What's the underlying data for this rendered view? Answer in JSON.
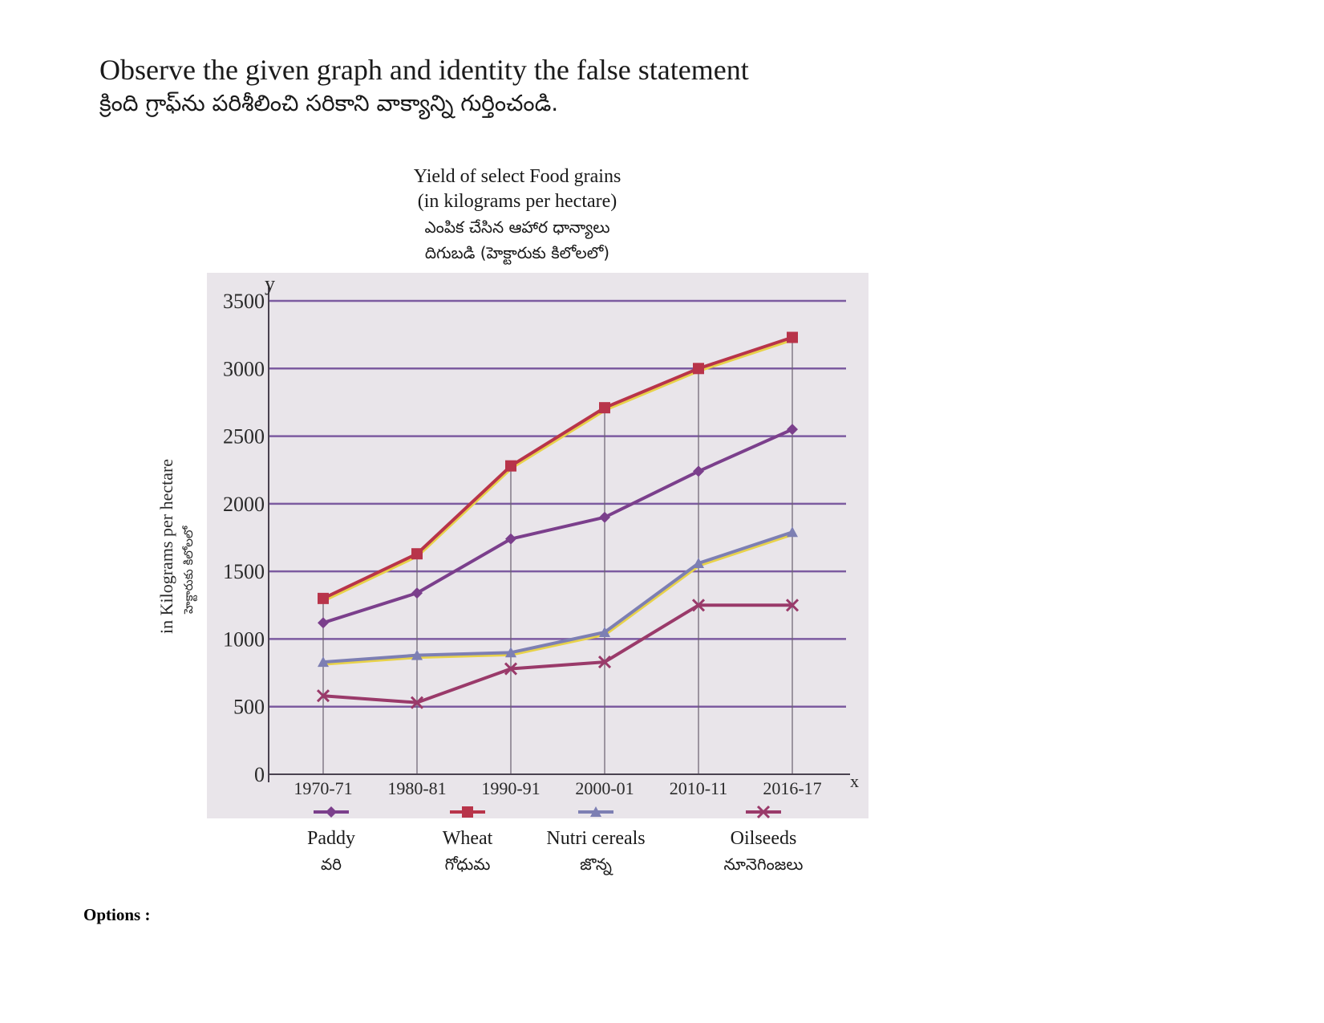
{
  "question": {
    "text_en": "Observe the given graph and identity the false statement",
    "text_te": "క్రింది గ్రాఫ్‌ను పరిశీలించి సరికాని వాక్యాన్ని గుర్తించండి."
  },
  "options_label": "Options :",
  "colors": {
    "paddy": "#7b3f8c",
    "wheat": "#b8344a",
    "nutri": "#7d7fb3",
    "oilseeds": "#9a3a6a",
    "grid": "#7c5ba0",
    "plot_bg": "#e9e5ea",
    "axis": "#4a4250"
  },
  "chart_data": {
    "type": "line",
    "title": "Yield of select Food grains",
    "subtitle": "(in kilograms per hectare)",
    "title_te": "ఎంపిక చేసిన ఆహార ధాన్యాలు",
    "subtitle_te": "దిగుబడి (హెక్టారుకు కిలోలలో)",
    "xlabel": "x",
    "ylabel": "y",
    "ylabel_en": "in Kilograms per hectare",
    "ylabel_te": "హెక్టారుకు కిలోలలో",
    "x": [
      "1970-71",
      "1980-81",
      "1990-91",
      "2000-01",
      "2010-11",
      "2016-17"
    ],
    "yticks": [
      0,
      500,
      1000,
      1500,
      2000,
      2500,
      3000,
      3500
    ],
    "ylim": [
      0,
      3500
    ],
    "grid": true,
    "series": [
      {
        "name": "Paddy",
        "name_te": "వరి",
        "key": "paddy",
        "marker": "diamond",
        "values": [
          1120,
          1340,
          1740,
          1900,
          2240,
          2550
        ]
      },
      {
        "name": "Wheat",
        "name_te": "గోధుమ",
        "key": "wheat",
        "marker": "square",
        "values": [
          1300,
          1630,
          2280,
          2710,
          3000,
          3230
        ]
      },
      {
        "name": "Nutri cereals",
        "name_te": "జొన్న",
        "key": "nutri",
        "marker": "triangle",
        "values": [
          830,
          880,
          900,
          1050,
          1560,
          1790
        ]
      },
      {
        "name": "Oilseeds",
        "name_te": "నూనెగింజలు",
        "key": "oilseeds",
        "marker": "x",
        "values": [
          580,
          530,
          780,
          830,
          1250,
          1250
        ]
      }
    ]
  }
}
